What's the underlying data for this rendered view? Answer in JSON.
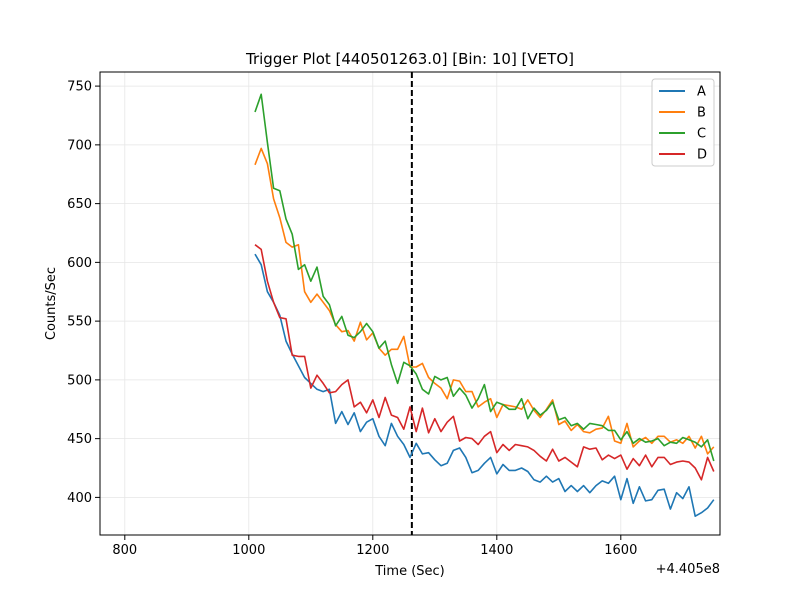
{
  "chart_data": {
    "type": "line",
    "title": "Trigger Plot [440501263.0] [Bin: 10] [VETO]",
    "xlabel": "Time (Sec)",
    "ylabel": "Counts/Sec",
    "x_offset_label": "+4.405e8",
    "xlim": [
      760,
      1760
    ],
    "ylim": [
      368,
      762
    ],
    "xticks": [
      800,
      1000,
      1200,
      1400,
      1600
    ],
    "yticks": [
      400,
      450,
      500,
      550,
      600,
      650,
      700,
      750
    ],
    "grid": true,
    "legend_placement": "top-right",
    "vline": {
      "x": 1263,
      "style": "dashed",
      "color": "#000000"
    },
    "x": [
      1010,
      1020,
      1030,
      1040,
      1050,
      1060,
      1070,
      1080,
      1090,
      1100,
      1110,
      1120,
      1130,
      1140,
      1150,
      1160,
      1170,
      1180,
      1190,
      1200,
      1210,
      1220,
      1230,
      1240,
      1250,
      1260,
      1270,
      1280,
      1290,
      1300,
      1310,
      1320,
      1330,
      1340,
      1350,
      1360,
      1370,
      1380,
      1390,
      1400,
      1410,
      1420,
      1430,
      1440,
      1450,
      1460,
      1470,
      1480,
      1490,
      1500,
      1510,
      1520,
      1530,
      1540,
      1550,
      1560,
      1570,
      1580,
      1590,
      1600,
      1610,
      1620,
      1630,
      1640,
      1650,
      1660,
      1670,
      1680,
      1690,
      1700,
      1710,
      1720,
      1730,
      1740,
      1750
    ],
    "series": [
      {
        "name": "A",
        "color": "#1f77b4",
        "values": [
          607,
          598,
          575,
          566,
          555,
          533,
          522,
          512,
          502,
          497,
          492,
          490,
          492,
          463,
          473,
          462,
          472,
          456,
          464,
          467,
          452,
          444,
          463,
          452,
          445,
          434,
          446,
          437,
          438,
          432,
          427,
          429,
          440,
          442,
          434,
          421,
          423,
          429,
          434,
          420,
          428,
          423,
          423,
          425,
          422,
          415,
          413,
          418,
          413,
          416,
          405,
          410,
          405,
          410,
          404,
          410,
          414,
          412,
          418,
          398,
          416,
          395,
          409,
          397,
          398,
          406,
          407,
          390,
          404,
          399,
          409,
          384,
          387,
          391,
          398
        ]
      },
      {
        "name": "B",
        "color": "#ff7f0e",
        "values": [
          683,
          697,
          684,
          654,
          638,
          617,
          613,
          615,
          575,
          566,
          573,
          566,
          559,
          547,
          541,
          542,
          533,
          549,
          534,
          540,
          527,
          521,
          526,
          526,
          537,
          511,
          511,
          514,
          502,
          497,
          493,
          484,
          500,
          499,
          490,
          490,
          477,
          481,
          484,
          468,
          479,
          478,
          477,
          475,
          483,
          474,
          468,
          475,
          483,
          462,
          465,
          457,
          462,
          456,
          455,
          458,
          459,
          469,
          448,
          446,
          463,
          443,
          448,
          451,
          446,
          452,
          452,
          447,
          449,
          446,
          452,
          442,
          452,
          437,
          443
        ]
      },
      {
        "name": "C",
        "color": "#2ca02c",
        "values": [
          728,
          743,
          702,
          663,
          661,
          637,
          624,
          594,
          598,
          584,
          596,
          571,
          564,
          546,
          554,
          538,
          536,
          541,
          548,
          541,
          527,
          533,
          513,
          497,
          515,
          512,
          505,
          492,
          488,
          503,
          500,
          502,
          486,
          493,
          487,
          476,
          484,
          496,
          473,
          481,
          479,
          475,
          475,
          484,
          467,
          476,
          470,
          474,
          481,
          466,
          468,
          461,
          463,
          458,
          463,
          462,
          461,
          457,
          457,
          449,
          456,
          446,
          450,
          447,
          448,
          450,
          444,
          447,
          446,
          451,
          449,
          447,
          443,
          449,
          431
        ]
      },
      {
        "name": "D",
        "color": "#d62728",
        "values": [
          615,
          611,
          584,
          566,
          553,
          552,
          521,
          520,
          520,
          493,
          504,
          497,
          489,
          490,
          496,
          500,
          477,
          481,
          472,
          483,
          468,
          485,
          470,
          468,
          458,
          477,
          456,
          476,
          455,
          467,
          456,
          464,
          469,
          448,
          451,
          450,
          445,
          452,
          456,
          438,
          445,
          440,
          445,
          444,
          443,
          440,
          435,
          431,
          441,
          431,
          434,
          430,
          426,
          443,
          441,
          442,
          432,
          436,
          433,
          436,
          424,
          433,
          427,
          436,
          426,
          434,
          434,
          428,
          430,
          431,
          430,
          425,
          415,
          434,
          422
        ]
      }
    ]
  }
}
